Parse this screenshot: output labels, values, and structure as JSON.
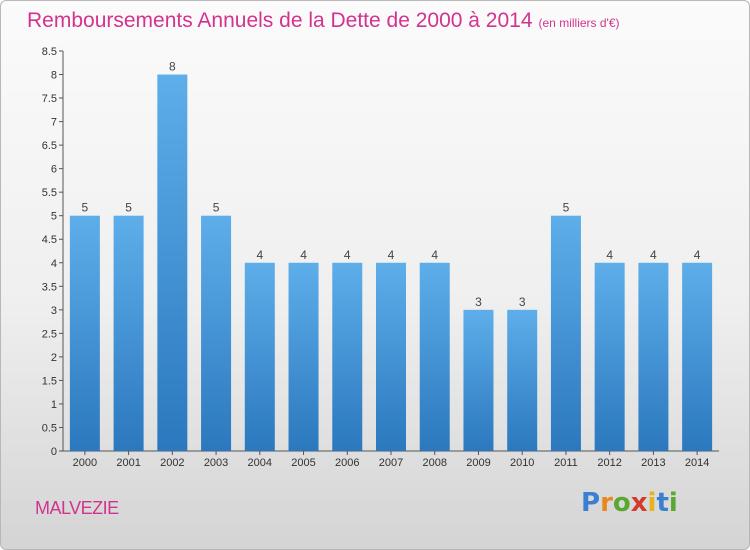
{
  "title": "Remboursements Annuels de la Dette de 2000 à 2014",
  "subtitle": "(en milliers d'€)",
  "town": "MALVEZIE",
  "logo": {
    "letters": [
      "P",
      "r",
      "o",
      "x",
      "i",
      "t",
      "i"
    ],
    "colors": [
      "#3a7fd0",
      "#e8891f",
      "#5aa832",
      "#d43a2b",
      "#e8b21f",
      "#3a7fd0",
      "#5aa832"
    ]
  },
  "chart_data": {
    "type": "bar",
    "categories": [
      "2000",
      "2001",
      "2002",
      "2003",
      "2004",
      "2005",
      "2006",
      "2007",
      "2008",
      "2009",
      "2010",
      "2011",
      "2012",
      "2013",
      "2014"
    ],
    "values": [
      5,
      5,
      8,
      5,
      4,
      4,
      4,
      4,
      4,
      3,
      3,
      5,
      4,
      4,
      4
    ],
    "data_labels": [
      "5",
      "5",
      "8",
      "5",
      "4",
      "4",
      "4",
      "4",
      "4",
      "3",
      "3",
      "5",
      "4",
      "4",
      "4"
    ],
    "yticks": [
      "0",
      "0.5",
      "1",
      "1.5",
      "2",
      "2.5",
      "3",
      "3.5",
      "4",
      "4.5",
      "5",
      "5.5",
      "6",
      "6.5",
      "7",
      "7.5",
      "8",
      "8.5"
    ],
    "ylim": [
      0,
      8.5
    ],
    "bar_color": "#4d9ee0",
    "grid": false,
    "legend": "none"
  }
}
